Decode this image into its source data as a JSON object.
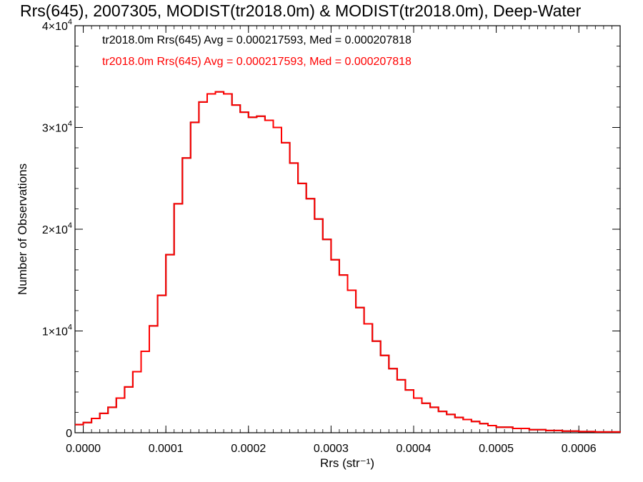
{
  "chart_data": {
    "type": "line",
    "title": "Rrs(645), 2007305, MODIST(tr2018.0m) & MODIST(tr2018.0m), Deep-Water",
    "xlabel": "Rrs (str⁻¹)",
    "ylabel": "Number of Observations",
    "xlim": [
      -1e-05,
      0.00065
    ],
    "ylim": [
      0,
      40000
    ],
    "x_ticks": [
      {
        "value": 0.0,
        "label": "0.0000"
      },
      {
        "value": 0.0001,
        "label": "0.0001"
      },
      {
        "value": 0.0002,
        "label": "0.0002"
      },
      {
        "value": 0.0003,
        "label": "0.0003"
      },
      {
        "value": 0.0004,
        "label": "0.0004"
      },
      {
        "value": 0.0005,
        "label": "0.0005"
      },
      {
        "value": 0.0006,
        "label": "0.0006"
      }
    ],
    "y_ticks": [
      {
        "value": 0,
        "base": "0",
        "exp": ""
      },
      {
        "value": 10000,
        "base": "1×10",
        "exp": "4"
      },
      {
        "value": 20000,
        "base": "2×10",
        "exp": "4"
      },
      {
        "value": 30000,
        "base": "3×10",
        "exp": "4"
      },
      {
        "value": 40000,
        "base": "4×10",
        "exp": "4"
      }
    ],
    "annotations": [
      {
        "text": "tr2018.0m Rrs(645) Avg = 0.000217593, Med = 0.000207818",
        "color": "#000000"
      },
      {
        "text": "tr2018.0m Rrs(645) Avg = 0.000217593, Med = 0.000207818",
        "color": "#ff0000"
      }
    ],
    "series": [
      {
        "color": "#000000",
        "x": [
          -1e-05,
          0.0,
          1e-05,
          2e-05,
          3e-05,
          4e-05,
          5e-05,
          6e-05,
          7e-05,
          8e-05,
          9e-05,
          0.0001,
          0.00011,
          0.00012,
          0.00013,
          0.00014,
          0.00015,
          0.00016,
          0.00017,
          0.00018,
          0.00019,
          0.0002,
          0.00021,
          0.00022,
          0.00023,
          0.00024,
          0.00025,
          0.00026,
          0.00027,
          0.00028,
          0.00029,
          0.0003,
          0.00031,
          0.00032,
          0.00033,
          0.00034,
          0.00035,
          0.00036,
          0.00037,
          0.00038,
          0.00039,
          0.0004,
          0.00041,
          0.00042,
          0.00043,
          0.00044,
          0.00045,
          0.00046,
          0.00047,
          0.00048,
          0.00049,
          0.0005,
          0.00052,
          0.00054,
          0.00056,
          0.00058,
          0.0006,
          0.00062,
          0.00065
        ],
        "y": [
          800,
          1000,
          1400,
          1900,
          2500,
          3400,
          4500,
          6000,
          8000,
          10500,
          13500,
          17500,
          22500,
          27000,
          30500,
          32500,
          33300,
          33500,
          33300,
          32200,
          31500,
          31000,
          31100,
          30700,
          30000,
          28500,
          26500,
          24500,
          23000,
          21000,
          19000,
          17000,
          15500,
          14000,
          12300,
          10700,
          9000,
          7600,
          6300,
          5200,
          4200,
          3400,
          2900,
          2500,
          2100,
          1800,
          1500,
          1300,
          1100,
          900,
          700,
          550,
          420,
          300,
          220,
          160,
          110,
          80,
          50
        ]
      },
      {
        "color": "#ff0000",
        "x": [
          -1e-05,
          0.0,
          1e-05,
          2e-05,
          3e-05,
          4e-05,
          5e-05,
          6e-05,
          7e-05,
          8e-05,
          9e-05,
          0.0001,
          0.00011,
          0.00012,
          0.00013,
          0.00014,
          0.00015,
          0.00016,
          0.00017,
          0.00018,
          0.00019,
          0.0002,
          0.00021,
          0.00022,
          0.00023,
          0.00024,
          0.00025,
          0.00026,
          0.00027,
          0.00028,
          0.00029,
          0.0003,
          0.00031,
          0.00032,
          0.00033,
          0.00034,
          0.00035,
          0.00036,
          0.00037,
          0.00038,
          0.00039,
          0.0004,
          0.00041,
          0.00042,
          0.00043,
          0.00044,
          0.00045,
          0.00046,
          0.00047,
          0.00048,
          0.00049,
          0.0005,
          0.00052,
          0.00054,
          0.00056,
          0.00058,
          0.0006,
          0.00062,
          0.00065
        ],
        "y": [
          800,
          1000,
          1400,
          1900,
          2500,
          3400,
          4500,
          6000,
          8000,
          10500,
          13500,
          17500,
          22500,
          27000,
          30500,
          32500,
          33300,
          33500,
          33300,
          32200,
          31500,
          31000,
          31100,
          30700,
          30000,
          28500,
          26500,
          24500,
          23000,
          21000,
          19000,
          17000,
          15500,
          14000,
          12300,
          10700,
          9000,
          7600,
          6300,
          5200,
          4200,
          3400,
          2900,
          2500,
          2100,
          1800,
          1500,
          1300,
          1100,
          900,
          700,
          550,
          420,
          300,
          220,
          160,
          110,
          80,
          50
        ]
      }
    ]
  }
}
